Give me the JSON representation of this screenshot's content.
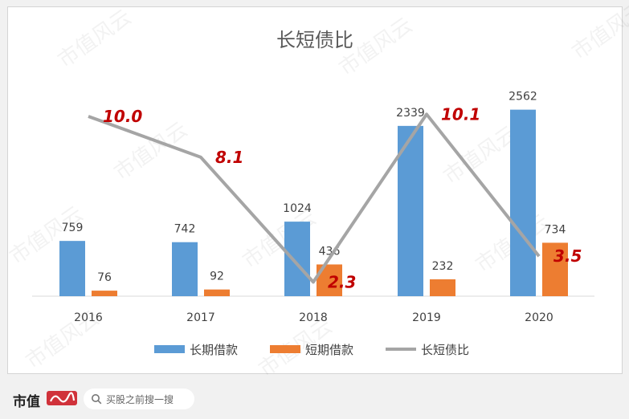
{
  "chart_data": {
    "type": "bar",
    "title": "长短债比",
    "categories": [
      "2016",
      "2017",
      "2018",
      "2019",
      "2020"
    ],
    "series": [
      {
        "name": "长期借款",
        "kind": "bar",
        "color": "#5b9bd5",
        "values": [
          759,
          742,
          1024,
          2339,
          2562
        ]
      },
      {
        "name": "短期借款",
        "kind": "bar",
        "color": "#ed7d31",
        "values": [
          76,
          92,
          436,
          232,
          734
        ]
      },
      {
        "name": "长短债比",
        "kind": "line",
        "color": "#a5a5a5",
        "values": [
          10.0,
          8.1,
          2.3,
          10.1,
          3.5
        ]
      }
    ],
    "line_labels": [
      "10.0",
      "8.1",
      "2.3",
      "10.1",
      "3.5"
    ],
    "line_label_color": "#c00000",
    "legend_position": "bottom",
    "grid": false
  },
  "watermark": "市值风云",
  "footer": {
    "brand": "市值",
    "search_placeholder": "买股之前搜一搜"
  }
}
